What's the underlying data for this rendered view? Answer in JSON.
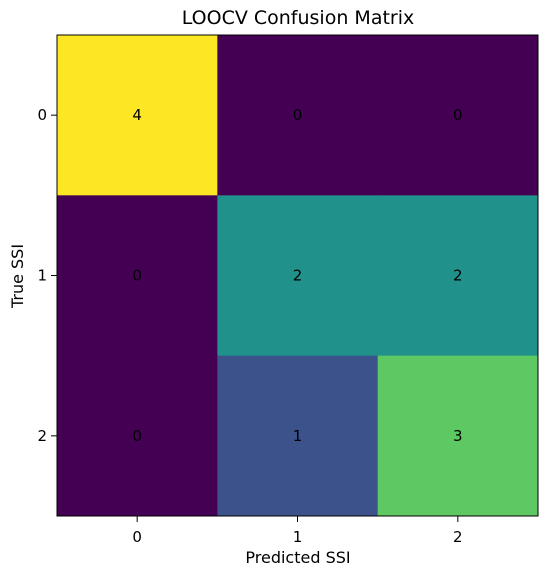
{
  "chart_data": {
    "type": "heatmap",
    "title": "LOOCV Confusion Matrix",
    "xlabel": "Predicted SSI",
    "ylabel": "True SSI",
    "x_categories": [
      "0",
      "1",
      "2"
    ],
    "y_categories": [
      "0",
      "1",
      "2"
    ],
    "values": [
      [
        4,
        0,
        0
      ],
      [
        0,
        2,
        2
      ],
      [
        0,
        1,
        3
      ]
    ],
    "vmin": 0,
    "vmax": 4,
    "colormap": "viridis",
    "grid": false,
    "colors": {
      "0": "#440154",
      "1": "#3b528b",
      "2": "#21918c",
      "3": "#5ec962",
      "4": "#fde725"
    }
  }
}
